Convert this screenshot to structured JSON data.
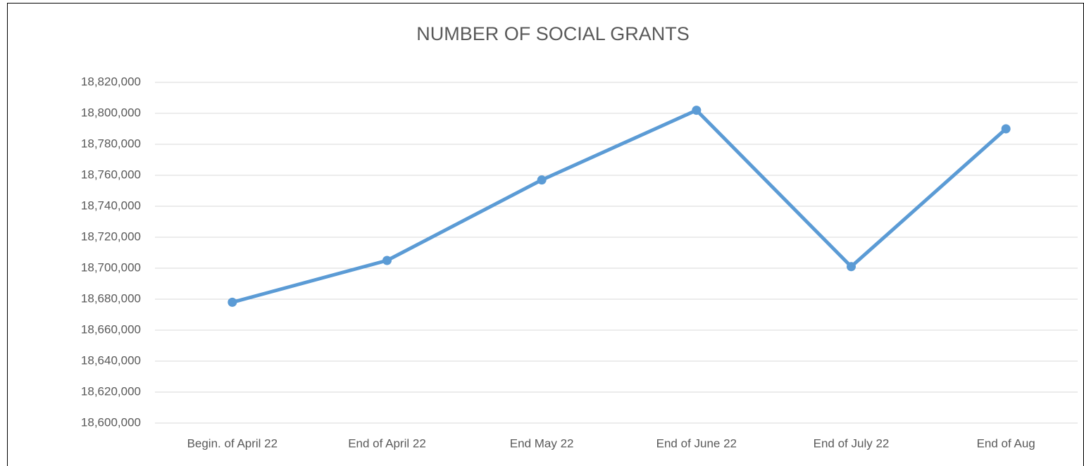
{
  "chart_data": {
    "type": "line",
    "title": "NUMBER OF SOCIAL GRANTS",
    "categories": [
      "Begin. of April 22",
      "End of April 22",
      "End May 22",
      "End of June 22",
      "End of July 22",
      "End of Aug"
    ],
    "series": [
      {
        "name": "Number of social grants",
        "color": "#5b9bd5",
        "values": [
          18678000,
          18705000,
          18757000,
          18802000,
          18701000,
          18790000
        ]
      }
    ],
    "ylim": [
      18600000,
      18820000
    ],
    "yticks": [
      {
        "value": 18600000,
        "label": "18,600,000"
      },
      {
        "value": 18620000,
        "label": "18,620,000"
      },
      {
        "value": 18640000,
        "label": "18,640,000"
      },
      {
        "value": 18660000,
        "label": "18,660,000"
      },
      {
        "value": 18680000,
        "label": "18,680,000"
      },
      {
        "value": 18700000,
        "label": "18,700,000"
      },
      {
        "value": 18720000,
        "label": "18,720,000"
      },
      {
        "value": 18740000,
        "label": "18,740,000"
      },
      {
        "value": 18760000,
        "label": "18,760,000"
      },
      {
        "value": 18780000,
        "label": "18,780,000"
      },
      {
        "value": 18800000,
        "label": "18,800,000"
      },
      {
        "value": 18820000,
        "label": "18,820,000"
      }
    ],
    "grid": true
  }
}
